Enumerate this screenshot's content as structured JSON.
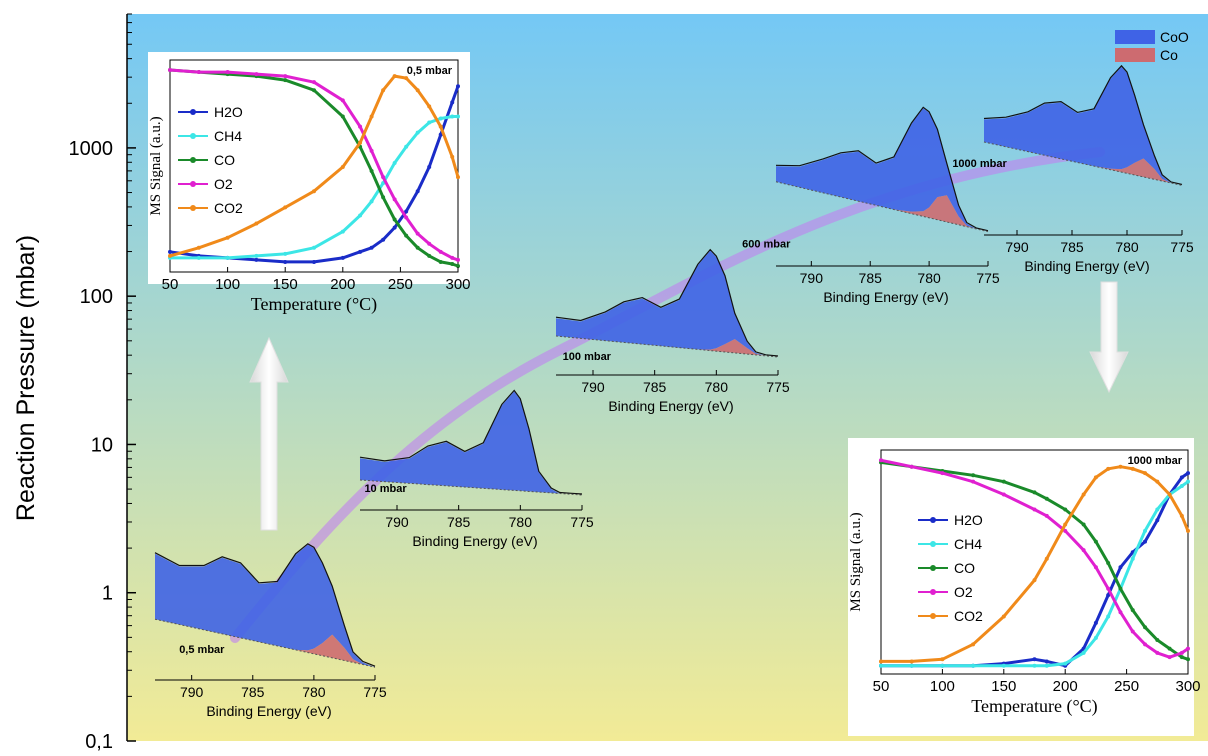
{
  "main_axis": {
    "ylabel": "Reaction Pressure (mbar)",
    "ytick_labels": [
      "0,1",
      "1",
      "10",
      "100",
      "1000"
    ],
    "scale": "log",
    "ylim": [
      0.1,
      8000
    ],
    "grid": false
  },
  "legend": {
    "placement": "top-right",
    "items": [
      {
        "label": "CoO",
        "color": "#3f63e6"
      },
      {
        "label": "Co",
        "color": "#cd6b70"
      }
    ]
  },
  "colors": {
    "bg_top": "#74c8f5",
    "bg_bottom": "#f2eb96",
    "arrow": "#ffffff",
    "pressure_path": "#c080f0"
  },
  "chart_data": [
    {
      "type": "area",
      "role": "XPS Co 2p spectrum",
      "pressure_label": "0,5 mbar",
      "pressure": 0.5,
      "xlabel": "Binding Energy (eV)",
      "xlim": [
        793,
        775
      ],
      "xtick_labels": [
        "790",
        "785",
        "780",
        "775"
      ],
      "x": [
        793,
        791,
        789,
        787.5,
        786,
        784.5,
        783,
        781.5,
        780.5,
        780,
        779.3,
        778.5,
        777.5,
        776.8,
        776,
        775
      ],
      "series": [
        {
          "name": "CoO",
          "values": [
            0.62,
            0.55,
            0.6,
            0.72,
            0.7,
            0.55,
            0.6,
            0.9,
            1.0,
            0.95,
            0.75,
            0.45,
            0.2,
            0.06,
            0.02,
            0.0
          ]
        },
        {
          "name": "Co",
          "values": [
            0.0,
            0.0,
            0.0,
            0.0,
            0.0,
            0.0,
            0.0,
            0.0,
            0.02,
            0.05,
            0.12,
            0.22,
            0.12,
            0.03,
            0.0,
            0.0
          ]
        }
      ]
    },
    {
      "type": "area",
      "role": "XPS Co 2p spectrum",
      "pressure_label": "10 mbar",
      "pressure": 10,
      "xlabel": "Binding Energy (eV)",
      "xlim": [
        793,
        775
      ],
      "xtick_labels": [
        "790",
        "785",
        "780",
        "775"
      ],
      "x": [
        793,
        791,
        789,
        787.5,
        786,
        784.5,
        783,
        781.5,
        780.5,
        780,
        779.3,
        778.5,
        777.5,
        776.8,
        776,
        775
      ],
      "series": [
        {
          "name": "CoO",
          "values": [
            0.22,
            0.2,
            0.25,
            0.38,
            0.44,
            0.35,
            0.45,
            0.85,
            1.0,
            0.92,
            0.62,
            0.2,
            0.04,
            0.0,
            0.0,
            0.0
          ]
        },
        {
          "name": "Co",
          "values": [
            0.0,
            0.0,
            0.0,
            0.0,
            0.0,
            0.0,
            0.0,
            0.0,
            0.0,
            0.0,
            0.0,
            0.0,
            0.0,
            0.0,
            0.0,
            0.0
          ]
        }
      ]
    },
    {
      "type": "area",
      "role": "XPS Co 2p spectrum",
      "pressure_label": "100 mbar",
      "pressure": 100,
      "xlabel": "Binding Energy (eV)",
      "xlim": [
        793,
        775
      ],
      "xtick_labels": [
        "790",
        "785",
        "780",
        "775"
      ],
      "x": [
        793,
        791,
        789,
        787.5,
        786,
        784.5,
        783,
        781.5,
        780.5,
        780,
        779.3,
        778.5,
        777.5,
        776.8,
        776,
        775
      ],
      "series": [
        {
          "name": "CoO",
          "values": [
            0.18,
            0.17,
            0.28,
            0.4,
            0.46,
            0.38,
            0.48,
            0.85,
            1.0,
            0.92,
            0.68,
            0.25,
            0.06,
            0.01,
            0.0,
            0.0
          ]
        },
        {
          "name": "Co",
          "values": [
            0.0,
            0.0,
            0.0,
            0.0,
            0.0,
            0.0,
            0.0,
            0.0,
            0.01,
            0.03,
            0.08,
            0.14,
            0.06,
            0.01,
            0.0,
            0.0
          ]
        }
      ]
    },
    {
      "type": "area",
      "role": "XPS Co 2p spectrum",
      "pressure_label": "600 mbar",
      "pressure": 600,
      "xlabel": "Binding Energy (eV)",
      "xlim": [
        793,
        775
      ],
      "xtick_labels": [
        "790",
        "785",
        "780",
        "775"
      ],
      "x": [
        793,
        791,
        789,
        787.5,
        786,
        784.5,
        783,
        781.5,
        780.5,
        780,
        779.3,
        778.5,
        777.5,
        776.8,
        776,
        775
      ],
      "series": [
        {
          "name": "CoO",
          "values": [
            0.15,
            0.2,
            0.32,
            0.42,
            0.48,
            0.4,
            0.5,
            0.85,
            1.0,
            0.92,
            0.65,
            0.3,
            0.1,
            0.02,
            0.0,
            0.0
          ]
        },
        {
          "name": "Co",
          "values": [
            0.0,
            0.0,
            0.0,
            0.0,
            0.0,
            0.0,
            0.0,
            0.02,
            0.05,
            0.1,
            0.22,
            0.26,
            0.08,
            0.01,
            0.0,
            0.0
          ]
        }
      ]
    },
    {
      "type": "area",
      "role": "XPS Co 2p spectrum",
      "pressure_label": "1000 mbar",
      "pressure": 1000,
      "xlabel": "Binding Energy (eV)",
      "xlim": [
        793,
        775
      ],
      "xtick_labels": [
        "790",
        "785",
        "780",
        "775"
      ],
      "x": [
        793,
        791,
        789,
        787.5,
        786,
        784.5,
        783,
        781.5,
        780.5,
        780,
        779.3,
        778.5,
        777.5,
        776.8,
        776,
        775
      ],
      "series": [
        {
          "name": "CoO",
          "values": [
            0.22,
            0.28,
            0.38,
            0.5,
            0.55,
            0.48,
            0.55,
            0.88,
            1.0,
            0.92,
            0.65,
            0.32,
            0.12,
            0.03,
            0.0,
            0.0
          ]
        },
        {
          "name": "Co",
          "values": [
            0.0,
            0.0,
            0.0,
            0.0,
            0.0,
            0.0,
            0.0,
            0.01,
            0.03,
            0.06,
            0.12,
            0.18,
            0.1,
            0.02,
            0.0,
            0.0
          ]
        }
      ]
    },
    {
      "type": "line",
      "role": "mass spectrometry",
      "pressure_label": "0,5 mbar",
      "xlabel": "Temperature (°C)",
      "ylabel": "MS Signal (a.u.)",
      "xlim": [
        50,
        300
      ],
      "ylim": [
        0,
        1
      ],
      "xtick_labels": [
        "50",
        "100",
        "150",
        "200",
        "250",
        "300"
      ],
      "x": [
        50,
        75,
        100,
        125,
        150,
        175,
        200,
        215,
        225,
        235,
        245,
        255,
        265,
        275,
        285,
        295,
        300
      ],
      "series": [
        {
          "name": "H2O",
          "color": "#1a2cc8",
          "values": [
            0.08,
            0.06,
            0.05,
            0.04,
            0.03,
            0.03,
            0.05,
            0.08,
            0.1,
            0.14,
            0.2,
            0.28,
            0.38,
            0.5,
            0.66,
            0.82,
            0.9
          ]
        },
        {
          "name": "CH4",
          "color": "#3ce6e6",
          "values": [
            0.05,
            0.05,
            0.05,
            0.06,
            0.07,
            0.1,
            0.18,
            0.26,
            0.33,
            0.42,
            0.52,
            0.6,
            0.67,
            0.72,
            0.74,
            0.75,
            0.75
          ]
        },
        {
          "name": "CO",
          "color": "#1a8a2a",
          "values": [
            0.98,
            0.97,
            0.96,
            0.95,
            0.93,
            0.88,
            0.75,
            0.6,
            0.48,
            0.35,
            0.24,
            0.16,
            0.1,
            0.06,
            0.03,
            0.02,
            0.01
          ]
        },
        {
          "name": "O2",
          "color": "#e020d0",
          "values": [
            0.98,
            0.97,
            0.97,
            0.96,
            0.95,
            0.92,
            0.83,
            0.7,
            0.58,
            0.45,
            0.34,
            0.25,
            0.17,
            0.12,
            0.08,
            0.05,
            0.04
          ]
        },
        {
          "name": "CO2",
          "color": "#f08a1a",
          "values": [
            0.06,
            0.1,
            0.15,
            0.22,
            0.3,
            0.38,
            0.5,
            0.62,
            0.75,
            0.88,
            0.95,
            0.94,
            0.88,
            0.8,
            0.7,
            0.55,
            0.45
          ]
        }
      ]
    },
    {
      "type": "line",
      "role": "mass spectrometry",
      "pressure_label": "1000 mbar",
      "xlabel": "Temperature (°C)",
      "ylabel": "MS Signal (a.u.)",
      "xlim": [
        50,
        300
      ],
      "ylim": [
        0,
        1
      ],
      "xtick_labels": [
        "50",
        "100",
        "150",
        "200",
        "250",
        "300"
      ],
      "x": [
        50,
        75,
        100,
        125,
        150,
        175,
        185,
        200,
        215,
        225,
        235,
        245,
        255,
        265,
        275,
        285,
        295,
        300
      ],
      "series": [
        {
          "name": "H2O",
          "color": "#1a2cc8",
          "values": [
            0.02,
            0.02,
            0.02,
            0.02,
            0.03,
            0.05,
            0.04,
            0.02,
            0.1,
            0.22,
            0.35,
            0.48,
            0.55,
            0.6,
            0.7,
            0.82,
            0.9,
            0.92
          ]
        },
        {
          "name": "CH4",
          "color": "#3ce6e6",
          "values": [
            0.02,
            0.02,
            0.02,
            0.02,
            0.02,
            0.02,
            0.02,
            0.03,
            0.08,
            0.15,
            0.25,
            0.38,
            0.52,
            0.65,
            0.75,
            0.82,
            0.86,
            0.88
          ]
        },
        {
          "name": "CO",
          "color": "#1a8a2a",
          "values": [
            0.97,
            0.95,
            0.93,
            0.91,
            0.88,
            0.83,
            0.8,
            0.75,
            0.68,
            0.6,
            0.5,
            0.38,
            0.28,
            0.2,
            0.14,
            0.1,
            0.06,
            0.05
          ]
        },
        {
          "name": "O2",
          "color": "#e020d0",
          "values": [
            0.98,
            0.95,
            0.92,
            0.88,
            0.82,
            0.75,
            0.72,
            0.65,
            0.56,
            0.48,
            0.38,
            0.27,
            0.18,
            0.12,
            0.08,
            0.06,
            0.08,
            0.1
          ]
        },
        {
          "name": "CO2",
          "color": "#f08a1a",
          "values": [
            0.04,
            0.04,
            0.05,
            0.12,
            0.25,
            0.42,
            0.52,
            0.68,
            0.82,
            0.9,
            0.94,
            0.95,
            0.94,
            0.92,
            0.88,
            0.82,
            0.72,
            0.65
          ]
        }
      ]
    }
  ]
}
